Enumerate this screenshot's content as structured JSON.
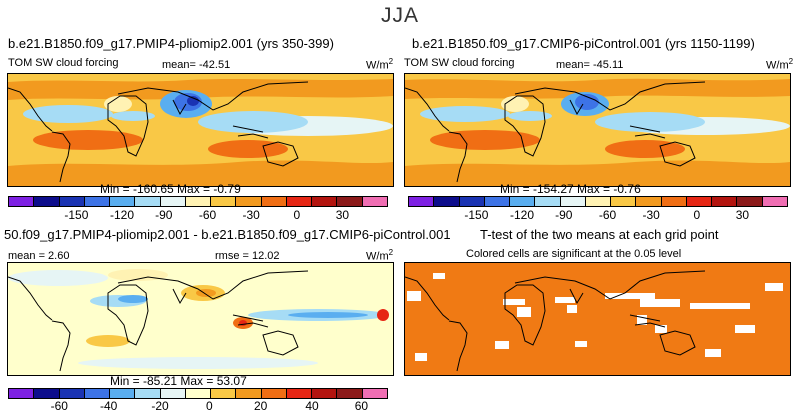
{
  "title": "JJA",
  "colors": {
    "seq": [
      "#7e21e3",
      "#0d0d8c",
      "#1a33b3",
      "#3d73e6",
      "#5aaef0",
      "#a6dcf5",
      "#e6f5f5",
      "#fff2b3",
      "#f9c846",
      "#f29a1f",
      "#f06e14",
      "#e62614",
      "#b3140f",
      "#8c1a1a",
      "#f06eb3"
    ],
    "diff": [
      "#7e21e3",
      "#0d0d8c",
      "#1a33b3",
      "#3d73e6",
      "#5aaef0",
      "#a6dcf5",
      "#e6f5f5",
      "#ffffcc",
      "#f9c846",
      "#f29a1f",
      "#f06e14",
      "#e62614",
      "#b3140f",
      "#8c1a1a",
      "#f06eb3"
    ],
    "ttest": "#f07a14",
    "land": "#000000"
  },
  "panels": {
    "p1": {
      "title": "b.e21.B1850.f09_g17.PMIP4-pliomip2.001 (yrs 350-399)",
      "left_label": "TOM SW cloud forcing",
      "mean": "mean= -42.51",
      "units": "W/m",
      "units_sup": "2",
      "minmax": "Min = -160.65  Max =   -0.79",
      "ticks": [
        "-150",
        "-120",
        "-90",
        "-60",
        "-30",
        "0",
        "30"
      ]
    },
    "p2": {
      "title": "b.e21.B1850.f09_g17.CMIP6-piControl.001 (yrs 1150-1199)",
      "left_label": "TOM SW cloud forcing",
      "mean": "mean= -45.11",
      "units": "W/m",
      "units_sup": "2",
      "minmax": "Min = -154.27  Max =   -0.76",
      "ticks": [
        "-150",
        "-120",
        "-90",
        "-60",
        "-30",
        "0",
        "30"
      ]
    },
    "p3": {
      "title": "50.f09_g17.PMIP4-pliomip2.001 - b.e21.B1850.f09_g17.CMIP6-piControl.001",
      "mean": "mean =   2.60",
      "rmse": "rmse =  12.02",
      "units": "W/m",
      "units_sup": "2",
      "minmax": "Min = -85.21  Max =  53.07",
      "ticks": [
        "-60",
        "-40",
        "-20",
        "0",
        "20",
        "40",
        "60"
      ]
    },
    "p4": {
      "title": "T-test of the two means at each grid point",
      "subtitle": "Colored cells are significant at the 0.05 level"
    }
  }
}
